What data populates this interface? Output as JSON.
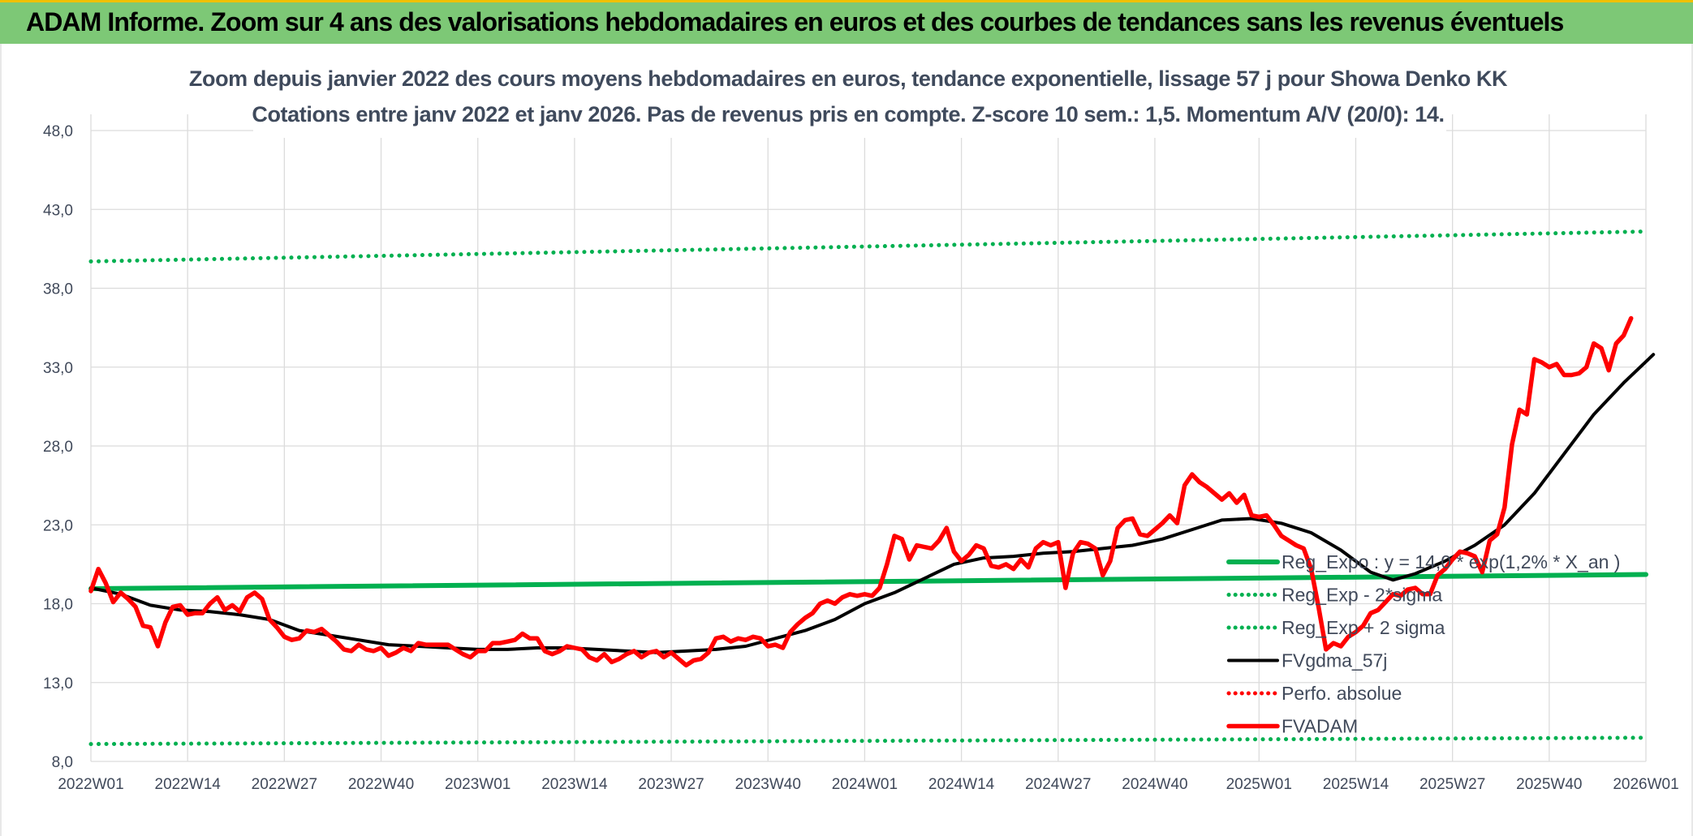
{
  "header": {
    "banner_title": "ADAM Informe. Zoom sur 4 ans des valorisations hebdomadaires en euros et des courbes de tendances sans les revenus éventuels"
  },
  "colors": {
    "banner_bg": "#7dc876",
    "regression": "#00b050",
    "fvadam": "#ff0000",
    "fvgdma": "#000000",
    "perfo": "#ff0000"
  },
  "chart_data": {
    "type": "line",
    "title": "Zoom depuis janvier 2022 des cours moyens hebdomadaires en euros, tendance exponentielle, lissage 57 j pour Showa Denko KK",
    "subtitle": "Cotations entre janv 2022 et janv 2026. Pas de revenus pris en compte. Z-score 10 sem.: 1,5. Momentum A/V (20/0): 14.",
    "ylim": [
      8,
      48
    ],
    "yticks": [
      "8,0",
      "13,0",
      "18,0",
      "23,0",
      "28,0",
      "33,0",
      "38,0",
      "43,0",
      "48,0"
    ],
    "ytick_values": [
      8,
      13,
      18,
      23,
      28,
      33,
      38,
      43,
      48
    ],
    "x_range_weeks": [
      0,
      209
    ],
    "xticks": [
      {
        "label": "2022W01",
        "week": 0
      },
      {
        "label": "2022W14",
        "week": 13
      },
      {
        "label": "2022W27",
        "week": 26
      },
      {
        "label": "2022W40",
        "week": 39
      },
      {
        "label": "2023W01",
        "week": 52
      },
      {
        "label": "2023W14",
        "week": 65
      },
      {
        "label": "2023W27",
        "week": 78
      },
      {
        "label": "2023W40",
        "week": 91
      },
      {
        "label": "2024W01",
        "week": 104
      },
      {
        "label": "2024W14",
        "week": 117
      },
      {
        "label": "2024W27",
        "week": 130
      },
      {
        "label": "2024W40",
        "week": 143
      },
      {
        "label": "2025W01",
        "week": 157
      },
      {
        "label": "2025W14",
        "week": 170
      },
      {
        "label": "2025W27",
        "week": 183
      },
      {
        "label": "2025W40",
        "week": 196
      },
      {
        "label": "2026W01",
        "week": 209
      }
    ],
    "legend_position": "right",
    "grid": true,
    "series": [
      {
        "name": "Reg_Expo : y = 14,0 * exp(1,2% * X_an )",
        "style": "solid-thick",
        "color": "#00b050",
        "points": [
          [
            0,
            18.95
          ],
          [
            209,
            19.85
          ]
        ]
      },
      {
        "name": "Reg_Exp - 2*sigma",
        "style": "dotted",
        "color": "#00b050",
        "points": [
          [
            0,
            9.1
          ],
          [
            209,
            9.5
          ]
        ]
      },
      {
        "name": "Reg_Exp + 2 sigma",
        "style": "dotted",
        "color": "#00b050",
        "points": [
          [
            0,
            39.7
          ],
          [
            209,
            41.6
          ]
        ]
      },
      {
        "name": "FVgdma_57j",
        "style": "solid",
        "color": "#000000",
        "points": [
          [
            0,
            19.0
          ],
          [
            4,
            18.6
          ],
          [
            8,
            17.9
          ],
          [
            12,
            17.6
          ],
          [
            16,
            17.5
          ],
          [
            20,
            17.3
          ],
          [
            24,
            17.0
          ],
          [
            28,
            16.3
          ],
          [
            32,
            16.0
          ],
          [
            36,
            15.7
          ],
          [
            40,
            15.4
          ],
          [
            44,
            15.3
          ],
          [
            48,
            15.2
          ],
          [
            52,
            15.1
          ],
          [
            56,
            15.1
          ],
          [
            60,
            15.2
          ],
          [
            64,
            15.2
          ],
          [
            68,
            15.1
          ],
          [
            72,
            15.0
          ],
          [
            76,
            14.9
          ],
          [
            80,
            15.0
          ],
          [
            84,
            15.1
          ],
          [
            88,
            15.3
          ],
          [
            92,
            15.8
          ],
          [
            96,
            16.3
          ],
          [
            100,
            17.0
          ],
          [
            104,
            18.0
          ],
          [
            108,
            18.7
          ],
          [
            112,
            19.6
          ],
          [
            116,
            20.5
          ],
          [
            120,
            20.9
          ],
          [
            124,
            21.0
          ],
          [
            128,
            21.2
          ],
          [
            132,
            21.3
          ],
          [
            136,
            21.5
          ],
          [
            140,
            21.7
          ],
          [
            144,
            22.1
          ],
          [
            148,
            22.7
          ],
          [
            152,
            23.3
          ],
          [
            156,
            23.4
          ],
          [
            160,
            23.1
          ],
          [
            164,
            22.5
          ],
          [
            168,
            21.4
          ],
          [
            172,
            20.0
          ],
          [
            175,
            19.5
          ],
          [
            178,
            19.9
          ],
          [
            182,
            20.7
          ],
          [
            186,
            21.7
          ],
          [
            190,
            23.0
          ],
          [
            194,
            25.0
          ],
          [
            198,
            27.5
          ],
          [
            202,
            30.0
          ],
          [
            206,
            32.0
          ],
          [
            210,
            33.8
          ]
        ]
      },
      {
        "name": "Perfo. absolue",
        "style": "dotted",
        "color": "#ff0000",
        "points": []
      },
      {
        "name": "FVADAM",
        "style": "solid-thick",
        "color": "#ff0000",
        "points": [
          [
            0,
            18.8
          ],
          [
            1,
            20.2
          ],
          [
            2,
            19.3
          ],
          [
            3,
            18.1
          ],
          [
            4,
            18.7
          ],
          [
            5,
            18.3
          ],
          [
            6,
            17.8
          ],
          [
            7,
            16.6
          ],
          [
            8,
            16.5
          ],
          [
            9,
            15.3
          ],
          [
            10,
            16.8
          ],
          [
            11,
            17.8
          ],
          [
            12,
            17.9
          ],
          [
            13,
            17.3
          ],
          [
            14,
            17.4
          ],
          [
            15,
            17.4
          ],
          [
            16,
            18.0
          ],
          [
            17,
            18.4
          ],
          [
            18,
            17.6
          ],
          [
            19,
            17.9
          ],
          [
            20,
            17.5
          ],
          [
            21,
            18.4
          ],
          [
            22,
            18.7
          ],
          [
            23,
            18.3
          ],
          [
            24,
            17.0
          ],
          [
            25,
            16.5
          ],
          [
            26,
            15.9
          ],
          [
            27,
            15.7
          ],
          [
            28,
            15.8
          ],
          [
            29,
            16.3
          ],
          [
            30,
            16.2
          ],
          [
            31,
            16.4
          ],
          [
            32,
            16.0
          ],
          [
            33,
            15.6
          ],
          [
            34,
            15.1
          ],
          [
            35,
            15.0
          ],
          [
            36,
            15.4
          ],
          [
            37,
            15.1
          ],
          [
            38,
            15.0
          ],
          [
            39,
            15.2
          ],
          [
            40,
            14.7
          ],
          [
            41,
            14.9
          ],
          [
            42,
            15.2
          ],
          [
            43,
            15.0
          ],
          [
            44,
            15.5
          ],
          [
            45,
            15.4
          ],
          [
            46,
            15.4
          ],
          [
            47,
            15.4
          ],
          [
            48,
            15.4
          ],
          [
            49,
            15.1
          ],
          [
            50,
            14.8
          ],
          [
            51,
            14.6
          ],
          [
            52,
            15.0
          ],
          [
            53,
            15.0
          ],
          [
            54,
            15.5
          ],
          [
            55,
            15.5
          ],
          [
            56,
            15.6
          ],
          [
            57,
            15.7
          ],
          [
            58,
            16.1
          ],
          [
            59,
            15.8
          ],
          [
            60,
            15.8
          ],
          [
            61,
            15.0
          ],
          [
            62,
            14.8
          ],
          [
            63,
            15.0
          ],
          [
            64,
            15.3
          ],
          [
            65,
            15.2
          ],
          [
            66,
            15.1
          ],
          [
            67,
            14.6
          ],
          [
            68,
            14.4
          ],
          [
            69,
            14.8
          ],
          [
            70,
            14.3
          ],
          [
            71,
            14.5
          ],
          [
            72,
            14.8
          ],
          [
            73,
            15.0
          ],
          [
            74,
            14.6
          ],
          [
            75,
            14.9
          ],
          [
            76,
            15.0
          ],
          [
            77,
            14.6
          ],
          [
            78,
            14.9
          ],
          [
            79,
            14.5
          ],
          [
            80,
            14.1
          ],
          [
            81,
            14.4
          ],
          [
            82,
            14.5
          ],
          [
            83,
            14.9
          ],
          [
            84,
            15.8
          ],
          [
            85,
            15.9
          ],
          [
            86,
            15.6
          ],
          [
            87,
            15.8
          ],
          [
            88,
            15.7
          ],
          [
            89,
            15.9
          ],
          [
            90,
            15.8
          ],
          [
            91,
            15.3
          ],
          [
            92,
            15.4
          ],
          [
            93,
            15.2
          ],
          [
            94,
            16.2
          ],
          [
            95,
            16.7
          ],
          [
            96,
            17.1
          ],
          [
            97,
            17.4
          ],
          [
            98,
            18.0
          ],
          [
            99,
            18.2
          ],
          [
            100,
            18.0
          ],
          [
            101,
            18.4
          ],
          [
            102,
            18.6
          ],
          [
            103,
            18.5
          ],
          [
            104,
            18.6
          ],
          [
            105,
            18.5
          ],
          [
            106,
            19.0
          ],
          [
            107,
            20.5
          ],
          [
            108,
            22.3
          ],
          [
            109,
            22.1
          ],
          [
            110,
            20.8
          ],
          [
            111,
            21.7
          ],
          [
            112,
            21.6
          ],
          [
            113,
            21.5
          ],
          [
            114,
            22.0
          ],
          [
            115,
            22.8
          ],
          [
            116,
            21.3
          ],
          [
            117,
            20.7
          ],
          [
            118,
            21.1
          ],
          [
            119,
            21.7
          ],
          [
            120,
            21.5
          ],
          [
            121,
            20.4
          ],
          [
            122,
            20.3
          ],
          [
            123,
            20.5
          ],
          [
            124,
            20.2
          ],
          [
            125,
            20.8
          ],
          [
            126,
            20.3
          ],
          [
            127,
            21.5
          ],
          [
            128,
            21.9
          ],
          [
            129,
            21.7
          ],
          [
            130,
            21.9
          ],
          [
            131,
            19.0
          ],
          [
            132,
            21.2
          ],
          [
            133,
            21.9
          ],
          [
            134,
            21.8
          ],
          [
            135,
            21.5
          ],
          [
            136,
            19.8
          ],
          [
            137,
            20.7
          ],
          [
            138,
            22.8
          ],
          [
            139,
            23.3
          ],
          [
            140,
            23.4
          ],
          [
            141,
            22.4
          ],
          [
            142,
            22.3
          ],
          [
            143,
            22.7
          ],
          [
            144,
            23.1
          ],
          [
            145,
            23.6
          ],
          [
            146,
            23.1
          ],
          [
            147,
            25.5
          ],
          [
            148,
            26.2
          ],
          [
            149,
            25.7
          ],
          [
            150,
            25.4
          ],
          [
            151,
            25.0
          ],
          [
            152,
            24.6
          ],
          [
            153,
            25.0
          ],
          [
            154,
            24.4
          ],
          [
            155,
            24.9
          ],
          [
            156,
            23.6
          ],
          [
            157,
            23.5
          ],
          [
            158,
            23.6
          ],
          [
            159,
            23.0
          ],
          [
            160,
            22.3
          ],
          [
            161,
            22.0
          ],
          [
            162,
            21.7
          ],
          [
            163,
            21.5
          ],
          [
            164,
            20.2
          ],
          [
            165,
            17.8
          ],
          [
            166,
            15.1
          ],
          [
            167,
            15.5
          ],
          [
            168,
            15.3
          ],
          [
            169,
            15.9
          ],
          [
            170,
            16.2
          ],
          [
            171,
            16.6
          ],
          [
            172,
            17.4
          ],
          [
            173,
            17.6
          ],
          [
            174,
            18.1
          ],
          [
            175,
            18.6
          ],
          [
            176,
            18.5
          ],
          [
            177,
            18.9
          ],
          [
            178,
            19.0
          ],
          [
            179,
            18.6
          ],
          [
            180,
            18.6
          ],
          [
            181,
            19.8
          ],
          [
            182,
            20.2
          ],
          [
            183,
            20.8
          ],
          [
            184,
            21.3
          ],
          [
            185,
            21.2
          ],
          [
            186,
            21.0
          ],
          [
            187,
            20.0
          ],
          [
            188,
            22.0
          ],
          [
            189,
            22.4
          ],
          [
            190,
            24.1
          ],
          [
            191,
            28.1
          ],
          [
            192,
            30.3
          ],
          [
            193,
            30.0
          ],
          [
            194,
            33.5
          ],
          [
            195,
            33.3
          ],
          [
            196,
            33.0
          ],
          [
            197,
            33.2
          ],
          [
            198,
            32.5
          ],
          [
            199,
            32.5
          ],
          [
            200,
            32.6
          ],
          [
            201,
            33.0
          ],
          [
            202,
            34.5
          ],
          [
            203,
            34.2
          ],
          [
            204,
            32.8
          ],
          [
            205,
            34.5
          ],
          [
            206,
            35.0
          ],
          [
            207,
            36.1
          ]
        ]
      }
    ]
  }
}
